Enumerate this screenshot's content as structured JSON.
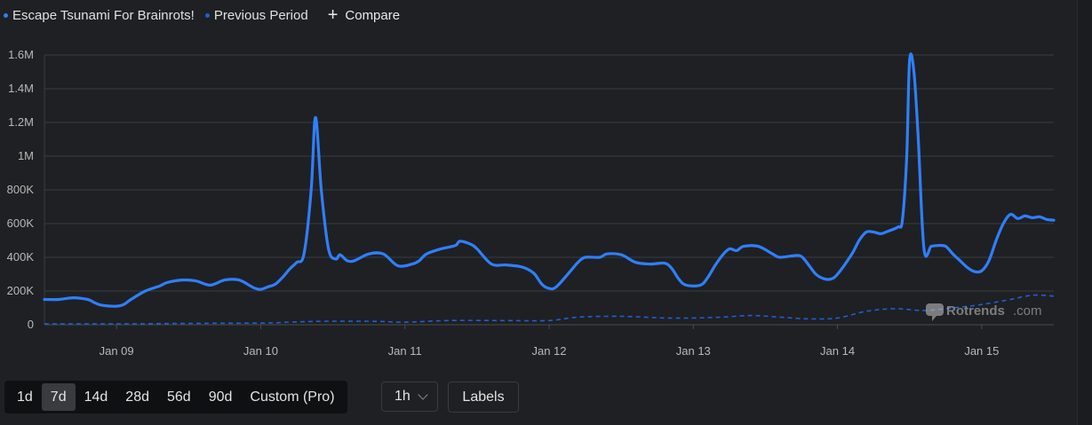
{
  "legend": {
    "series1_label": "Escape Tsunami For Brainrots!",
    "series2_label": "Previous Period",
    "compare_label": "Compare"
  },
  "watermark": "Rotrends",
  "watermark_suffix": ".com",
  "colors": {
    "primary": "#2f7fff",
    "previous": "#1f5fcf",
    "grid": "#3a3b3f",
    "background": "#1f2023"
  },
  "range_buttons": [
    "1d",
    "7d",
    "14d",
    "28d",
    "56d",
    "90d",
    "Custom (Pro)"
  ],
  "active_range": "7d",
  "interval": {
    "value": "1h"
  },
  "labels_button": "Labels",
  "chart_data": {
    "type": "line",
    "title": "",
    "xlabel": "",
    "ylabel": "",
    "ylim": [
      0,
      1600000
    ],
    "yticks": [
      0,
      200000,
      400000,
      600000,
      800000,
      1000000,
      1200000,
      1400000,
      1600000
    ],
    "ytick_labels": [
      "0",
      "200K",
      "400K",
      "600K",
      "800K",
      "1M",
      "1.2M",
      "1.4M",
      "1.6M"
    ],
    "xlim": [
      8.5,
      15.5
    ],
    "xticks": [
      9,
      10,
      11,
      12,
      13,
      14,
      15
    ],
    "xtick_labels": [
      "Jan 09",
      "Jan 10",
      "Jan 11",
      "Jan 12",
      "Jan 13",
      "Jan 14",
      "Jan 15"
    ],
    "grid": true,
    "legend_position": "top-left",
    "series": [
      {
        "name": "Escape Tsunami For Brainrots!",
        "style": "solid",
        "points": [
          [
            8.5,
            150000
          ],
          [
            8.6,
            150000
          ],
          [
            8.7,
            160000
          ],
          [
            8.8,
            150000
          ],
          [
            8.85,
            130000
          ],
          [
            8.9,
            115000
          ],
          [
            9.0,
            110000
          ],
          [
            9.05,
            120000
          ],
          [
            9.1,
            150000
          ],
          [
            9.2,
            200000
          ],
          [
            9.3,
            230000
          ],
          [
            9.35,
            250000
          ],
          [
            9.45,
            265000
          ],
          [
            9.55,
            260000
          ],
          [
            9.65,
            235000
          ],
          [
            9.75,
            265000
          ],
          [
            9.85,
            265000
          ],
          [
            9.95,
            220000
          ],
          [
            10.0,
            210000
          ],
          [
            10.05,
            225000
          ],
          [
            10.1,
            240000
          ],
          [
            10.15,
            280000
          ],
          [
            10.2,
            330000
          ],
          [
            10.25,
            370000
          ],
          [
            10.3,
            420000
          ],
          [
            10.35,
            800000
          ],
          [
            10.38,
            1230000
          ],
          [
            10.42,
            800000
          ],
          [
            10.47,
            450000
          ],
          [
            10.52,
            390000
          ],
          [
            10.55,
            415000
          ],
          [
            10.6,
            380000
          ],
          [
            10.65,
            380000
          ],
          [
            10.75,
            420000
          ],
          [
            10.85,
            420000
          ],
          [
            10.95,
            350000
          ],
          [
            11.05,
            360000
          ],
          [
            11.1,
            380000
          ],
          [
            11.15,
            420000
          ],
          [
            11.25,
            450000
          ],
          [
            11.35,
            470000
          ],
          [
            11.38,
            495000
          ],
          [
            11.45,
            480000
          ],
          [
            11.5,
            450000
          ],
          [
            11.6,
            360000
          ],
          [
            11.7,
            355000
          ],
          [
            11.8,
            345000
          ],
          [
            11.85,
            330000
          ],
          [
            11.9,
            300000
          ],
          [
            11.95,
            240000
          ],
          [
            12.0,
            215000
          ],
          [
            12.05,
            225000
          ],
          [
            12.15,
            320000
          ],
          [
            12.2,
            370000
          ],
          [
            12.25,
            400000
          ],
          [
            12.35,
            400000
          ],
          [
            12.4,
            420000
          ],
          [
            12.5,
            415000
          ],
          [
            12.6,
            370000
          ],
          [
            12.7,
            360000
          ],
          [
            12.8,
            365000
          ],
          [
            12.85,
            335000
          ],
          [
            12.9,
            270000
          ],
          [
            12.95,
            235000
          ],
          [
            13.05,
            235000
          ],
          [
            13.1,
            280000
          ],
          [
            13.15,
            350000
          ],
          [
            13.2,
            410000
          ],
          [
            13.25,
            450000
          ],
          [
            13.3,
            440000
          ],
          [
            13.35,
            465000
          ],
          [
            13.45,
            465000
          ],
          [
            13.55,
            420000
          ],
          [
            13.6,
            400000
          ],
          [
            13.7,
            410000
          ],
          [
            13.75,
            405000
          ],
          [
            13.8,
            355000
          ],
          [
            13.85,
            300000
          ],
          [
            13.9,
            275000
          ],
          [
            13.95,
            270000
          ],
          [
            14.0,
            300000
          ],
          [
            14.1,
            420000
          ],
          [
            14.15,
            500000
          ],
          [
            14.2,
            550000
          ],
          [
            14.25,
            550000
          ],
          [
            14.3,
            540000
          ],
          [
            14.35,
            555000
          ],
          [
            14.42,
            580000
          ],
          [
            14.45,
            620000
          ],
          [
            14.48,
            1000000
          ],
          [
            14.5,
            1570000
          ],
          [
            14.53,
            1500000
          ],
          [
            14.56,
            1100000
          ],
          [
            14.6,
            450000
          ],
          [
            14.65,
            465000
          ],
          [
            14.7,
            470000
          ],
          [
            14.75,
            465000
          ],
          [
            14.8,
            420000
          ],
          [
            14.85,
            380000
          ],
          [
            14.9,
            340000
          ],
          [
            14.95,
            315000
          ],
          [
            15.0,
            320000
          ],
          [
            15.05,
            380000
          ],
          [
            15.1,
            500000
          ],
          [
            15.15,
            600000
          ],
          [
            15.2,
            655000
          ],
          [
            15.25,
            630000
          ],
          [
            15.3,
            645000
          ],
          [
            15.35,
            635000
          ],
          [
            15.4,
            640000
          ],
          [
            15.45,
            625000
          ],
          [
            15.5,
            620000
          ]
        ]
      },
      {
        "name": "Previous Period",
        "style": "dashed",
        "points": [
          [
            8.5,
            5000
          ],
          [
            9.0,
            5000
          ],
          [
            9.5,
            8000
          ],
          [
            10.0,
            10000
          ],
          [
            10.2,
            15000
          ],
          [
            10.4,
            20000
          ],
          [
            10.8,
            20000
          ],
          [
            11.0,
            15000
          ],
          [
            11.3,
            25000
          ],
          [
            11.7,
            25000
          ],
          [
            12.0,
            25000
          ],
          [
            12.2,
            45000
          ],
          [
            12.5,
            50000
          ],
          [
            12.8,
            40000
          ],
          [
            13.0,
            40000
          ],
          [
            13.2,
            45000
          ],
          [
            13.4,
            55000
          ],
          [
            13.6,
            45000
          ],
          [
            13.8,
            35000
          ],
          [
            14.0,
            40000
          ],
          [
            14.2,
            80000
          ],
          [
            14.4,
            95000
          ],
          [
            14.6,
            85000
          ],
          [
            14.8,
            100000
          ],
          [
            15.0,
            120000
          ],
          [
            15.2,
            150000
          ],
          [
            15.35,
            175000
          ],
          [
            15.5,
            170000
          ]
        ]
      }
    ]
  }
}
